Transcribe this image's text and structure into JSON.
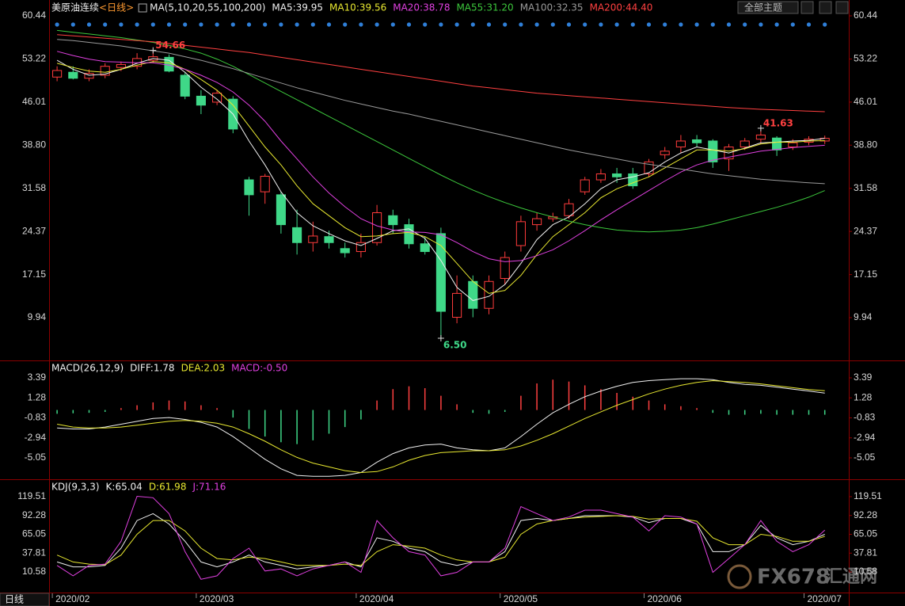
{
  "ui": {
    "period_name": "美原油连续",
    "period_tag": "<日线>",
    "theme_button": "全部主题",
    "period": "日线",
    "watermark": "FX678",
    "watermark_cn": "汇通网"
  },
  "chart_data": [
    {
      "type": "candlestick",
      "title": "MA(5,10,20,55,100,200)",
      "xlim": [
        -0.5,
        49.5
      ],
      "ylim": [
        3.18,
        62.43
      ],
      "yticks": [
        60.44,
        53.22,
        46.01,
        {
          "value": 38.8,
          "label": "38.80"
        },
        31.58,
        24.37,
        17.15,
        9.94
      ],
      "grid": false,
      "up_color": "#ff3c3c",
      "down_color": "#3fd888",
      "open": [
        50.2,
        51,
        50,
        50.5,
        51.8,
        52,
        53,
        53.5,
        50.5,
        47,
        46,
        46.5,
        33,
        31,
        30.5,
        25,
        22.5,
        23.5,
        21.5,
        21,
        22.5,
        27,
        25.5,
        22.3,
        24,
        10,
        16,
        11.5,
        16.5,
        22,
        25.5,
        26.5,
        27,
        31,
        33,
        34,
        34,
        34,
        37.2,
        38.5,
        39.7,
        39.5,
        36.5,
        38.5,
        39.8,
        40,
        38.5,
        39.3,
        39.5
      ],
      "high": [
        52,
        52,
        51.5,
        52.5,
        52.8,
        54.2,
        54.66,
        54,
        51,
        48,
        48,
        47,
        33.5,
        34,
        31,
        28,
        26,
        24.5,
        22.5,
        24,
        28.8,
        28,
        26.5,
        23.5,
        25,
        17,
        17,
        17,
        21,
        27,
        27.5,
        27.5,
        29.8,
        33.5,
        34.8,
        35,
        35,
        36.5,
        38.5,
        40.5,
        40.5,
        39.8,
        39,
        40,
        41.63,
        40.3,
        39.8,
        40.3,
        40.4
      ],
      "low": [
        49.5,
        49.8,
        49.5,
        50,
        51.2,
        51.5,
        52.5,
        51,
        46.5,
        44,
        45.5,
        40.8,
        27,
        29,
        24,
        20.5,
        21,
        21.5,
        20,
        20,
        22,
        24,
        21.5,
        20.5,
        6.5,
        9,
        10,
        10.5,
        15.5,
        21,
        24.5,
        26,
        26.5,
        30.5,
        32.5,
        32.5,
        31.5,
        33.5,
        36.5,
        37.5,
        38.5,
        35,
        34.5,
        38,
        39,
        37,
        38,
        38.8,
        39
      ],
      "close": [
        51.3,
        50,
        50.8,
        52,
        52.3,
        53.3,
        53.6,
        51.2,
        47,
        45.5,
        47.5,
        41.5,
        30.5,
        33.6,
        25.5,
        22.5,
        23.6,
        22.5,
        20.8,
        22.5,
        27.5,
        25.5,
        22.3,
        21,
        11,
        14,
        11.5,
        16,
        20,
        26,
        26.5,
        26.8,
        29,
        33,
        34,
        33.5,
        32,
        36,
        37.8,
        39.5,
        39.2,
        36,
        38.5,
        39.5,
        40.5,
        38,
        39.2,
        39.8,
        39.95
      ],
      "series": [
        {
          "name": "MA5:39.95",
          "color": "#f0f0f0",
          "values": [
            53,
            51.5,
            50.5,
            50.7,
            51.5,
            52.5,
            53.3,
            53,
            51,
            48.5,
            46.5,
            44,
            39.5,
            35.5,
            31,
            27.5,
            25.3,
            24,
            22.8,
            22,
            23.2,
            24.5,
            24.8,
            23.2,
            19.5,
            15,
            12.8,
            13.5,
            15.5,
            19,
            23,
            25.5,
            26.8,
            29,
            31.5,
            33,
            33.5,
            34.2,
            36,
            37.5,
            38.5,
            38,
            37.5,
            38.3,
            39.2,
            39.3,
            39.5,
            39.6,
            39.95
          ]
        },
        {
          "name": "MA10:39.56",
          "color": "#e8e830",
          "values": [
            52.5,
            51.8,
            51.2,
            51,
            51.5,
            52.2,
            52.8,
            52.6,
            51.5,
            49.8,
            48,
            45.5,
            42,
            38.5,
            35.5,
            32,
            29,
            27,
            25,
            23.5,
            23.6,
            24,
            24.2,
            23.5,
            22,
            19,
            16,
            14,
            14.5,
            17,
            20.5,
            23.5,
            25.5,
            27.5,
            30,
            31.5,
            32.5,
            33.5,
            35,
            36.5,
            38,
            38,
            37.8,
            38.2,
            39,
            39.3,
            39.3,
            39.5,
            39.56
          ]
        },
        {
          "name": "MA20:38.78",
          "color": "#e040e0",
          "values": [
            54.5,
            53.8,
            53.2,
            52.8,
            52.7,
            52.6,
            52.6,
            52.2,
            51.5,
            50.5,
            49.3,
            47.7,
            45.5,
            42.8,
            39.5,
            36.5,
            33.5,
            30.8,
            28.5,
            26.5,
            25.3,
            24.6,
            24.3,
            24.2,
            23.8,
            22.5,
            21,
            19.8,
            19.3,
            19.5,
            20.3,
            21.3,
            22.8,
            24.5,
            26.3,
            28,
            29.6,
            31.2,
            32.8,
            34.3,
            35.5,
            36.3,
            36.8,
            37.3,
            37.8,
            38.1,
            38.4,
            38.6,
            38.78
          ]
        },
        {
          "name": "MA55:31.20",
          "color": "#3cc83c",
          "values": [
            58,
            57.7,
            57.4,
            57.1,
            56.8,
            56.4,
            56,
            55.5,
            54.9,
            54.2,
            53.2,
            52,
            50.6,
            49.2,
            47.8,
            46.4,
            45,
            43.6,
            42.2,
            40.8,
            39.4,
            38,
            36.6,
            35.2,
            33.8,
            32.5,
            31.3,
            30.2,
            29.2,
            28.3,
            27.5,
            26.8,
            26.1,
            25.5,
            25,
            24.6,
            24.4,
            24.3,
            24.4,
            24.6,
            25,
            25.6,
            26.3,
            27,
            27.7,
            28.4,
            29.2,
            30.1,
            31.2
          ]
        },
        {
          "name": "MA100:32.35",
          "color": "#9a9a9a",
          "values": [
            56.5,
            56.3,
            56,
            55.7,
            55.4,
            55,
            54.6,
            54.2,
            53.6,
            53,
            52.3,
            51.6,
            50.8,
            50,
            49.2,
            48.4,
            47.7,
            47,
            46.3,
            45.7,
            45.1,
            44.5,
            44,
            43.4,
            42.8,
            42.2,
            41.6,
            41,
            40.4,
            39.8,
            39.2,
            38.6,
            38,
            37.5,
            37,
            36.5,
            36,
            35.6,
            35.2,
            34.8,
            34.4,
            34,
            33.7,
            33.4,
            33.1,
            32.9,
            32.7,
            32.5,
            32.35
          ]
        },
        {
          "name": "MA200:44.40",
          "color": "#ff4040",
          "values": [
            57.3,
            57.1,
            56.9,
            56.7,
            56.5,
            56.3,
            56.1,
            55.8,
            55.5,
            55.2,
            54.9,
            54.6,
            54.3,
            53.9,
            53.5,
            53.1,
            52.7,
            52.3,
            51.9,
            51.5,
            51.1,
            50.7,
            50.3,
            49.9,
            49.5,
            49.1,
            48.7,
            48.4,
            48.1,
            47.8,
            47.5,
            47.3,
            47.1,
            46.9,
            46.7,
            46.5,
            46.3,
            46.1,
            45.9,
            45.7,
            45.5,
            45.3,
            45.1,
            44.95,
            44.8,
            44.7,
            44.6,
            44.5,
            44.4
          ]
        }
      ],
      "annotations": [
        {
          "x": 6,
          "value": 54.66,
          "color": "#ff4040"
        },
        {
          "x": 44,
          "value": 41.63,
          "color": "#ff4040"
        },
        {
          "x": 24,
          "value": 6.5,
          "label": "6.50",
          "color": "#3fd888"
        }
      ]
    },
    {
      "type": "macd",
      "title": "MACD(26,12,9)",
      "xlim": [
        -0.5,
        49.5
      ],
      "ylim": [
        -7.14,
        5.06
      ],
      "yticks": [
        3.39,
        1.28,
        -0.83,
        -2.94,
        -5.05
      ],
      "grid": false,
      "series": [
        {
          "name": "DIFF:1.78",
          "color": "#f0f0f0",
          "values": [
            -1.9,
            -2,
            -2,
            -1.8,
            -1.5,
            -1.2,
            -0.9,
            -0.8,
            -1,
            -1.3,
            -1.8,
            -2.8,
            -4,
            -5.2,
            -6.2,
            -6.9,
            -7,
            -7,
            -6.9,
            -6.6,
            -5.5,
            -4.6,
            -4,
            -3.7,
            -3.6,
            -4,
            -4.2,
            -4.3,
            -4,
            -2.8,
            -1.5,
            -0.3,
            0.6,
            1.4,
            2,
            2.5,
            2.9,
            3.1,
            3.2,
            3.3,
            3.3,
            3.2,
            2.9,
            2.7,
            2.6,
            2.4,
            2.2,
            2,
            1.78
          ]
        },
        {
          "name": "DEA:2.03",
          "color": "#e8e830",
          "values": [
            -1.5,
            -1.8,
            -1.9,
            -1.9,
            -1.8,
            -1.6,
            -1.4,
            -1.2,
            -1.1,
            -1.2,
            -1.4,
            -1.8,
            -2.5,
            -3.3,
            -4.2,
            -5,
            -5.6,
            -6,
            -6.4,
            -6.6,
            -6.5,
            -6,
            -5.3,
            -4.8,
            -4.5,
            -4.4,
            -4.3,
            -4.3,
            -4.2,
            -3.8,
            -3.2,
            -2.5,
            -1.7,
            -0.9,
            -0.2,
            0.5,
            1.1,
            1.7,
            2.2,
            2.6,
            2.9,
            3.1,
            3,
            2.9,
            2.75,
            2.55,
            2.35,
            2.15,
            2.03
          ]
        }
      ],
      "histogram": {
        "name": "MACD:-0.50",
        "color": "#e040e0",
        "up_color": "#ff4040",
        "down_color": "#3fd888",
        "values": [
          -0.4,
          -0.35,
          -0.3,
          -0.2,
          0.2,
          0.5,
          0.8,
          1,
          0.9,
          0.5,
          0.2,
          -0.8,
          -2,
          -2.8,
          -3.4,
          -3.6,
          -3.2,
          -2.5,
          -1.8,
          -1,
          1,
          2.2,
          2.5,
          2.3,
          1.5,
          0.6,
          -0.3,
          -0.4,
          -0.2,
          1.5,
          2.8,
          3.2,
          3,
          2.6,
          2.2,
          1.8,
          1.4,
          1,
          0.6,
          0.4,
          0.2,
          -0.3,
          -0.5,
          -0.5,
          -0.4,
          -0.5,
          -0.5,
          -0.5,
          -0.5
        ]
      }
    },
    {
      "type": "line",
      "title": "KDJ(9,3,3)",
      "xlim": [
        -0.5,
        49.5
      ],
      "ylim": [
        -15.74,
        141.25
      ],
      "yticks": [
        119.51,
        92.28,
        65.05,
        37.81,
        10.58
      ],
      "grid": false,
      "categories": [
        "2020/02",
        null,
        null,
        null,
        null,
        null,
        null,
        null,
        null,
        "2020/03",
        null,
        null,
        null,
        null,
        null,
        null,
        null,
        null,
        null,
        "2020/04",
        null,
        null,
        null,
        null,
        null,
        null,
        null,
        null,
        "2020/05",
        null,
        null,
        null,
        null,
        null,
        null,
        null,
        null,
        "2020/06",
        null,
        null,
        null,
        null,
        null,
        null,
        null,
        null,
        null,
        "2020/07",
        null
      ],
      "series": [
        {
          "name": "K:65.04",
          "color": "#f0f0f0",
          "values": [
            25,
            18,
            18,
            20,
            45,
            85,
            95,
            80,
            55,
            25,
            18,
            25,
            35,
            25,
            20,
            15,
            18,
            20,
            25,
            18,
            60,
            55,
            45,
            40,
            25,
            20,
            25,
            25,
            40,
            85,
            88,
            85,
            88,
            92,
            92,
            92,
            90,
            82,
            88,
            88,
            80,
            40,
            40,
            50,
            78,
            60,
            50,
            55,
            65.04
          ]
        },
        {
          "name": "D:61.98",
          "color": "#e8e830",
          "values": [
            35,
            25,
            22,
            21,
            35,
            65,
            85,
            85,
            70,
            45,
            30,
            28,
            32,
            30,
            25,
            20,
            20,
            20,
            22,
            20,
            40,
            50,
            48,
            45,
            35,
            28,
            25,
            25,
            32,
            65,
            80,
            85,
            88,
            90,
            91,
            92,
            91,
            87,
            88,
            88,
            84,
            60,
            50,
            50,
            65,
            62,
            55,
            55,
            61.98
          ]
        },
        {
          "name": "J:71.16",
          "color": "#e040e0",
          "values": [
            20,
            5,
            20,
            22,
            55,
            120,
            118,
            95,
            40,
            0,
            5,
            30,
            45,
            12,
            15,
            5,
            15,
            20,
            25,
            10,
            85,
            60,
            40,
            35,
            5,
            10,
            25,
            25,
            45,
            105,
            95,
            85,
            90,
            100,
            100,
            95,
            90,
            70,
            92,
            90,
            80,
            10,
            30,
            50,
            85,
            55,
            40,
            50,
            71.16
          ]
        }
      ]
    }
  ]
}
